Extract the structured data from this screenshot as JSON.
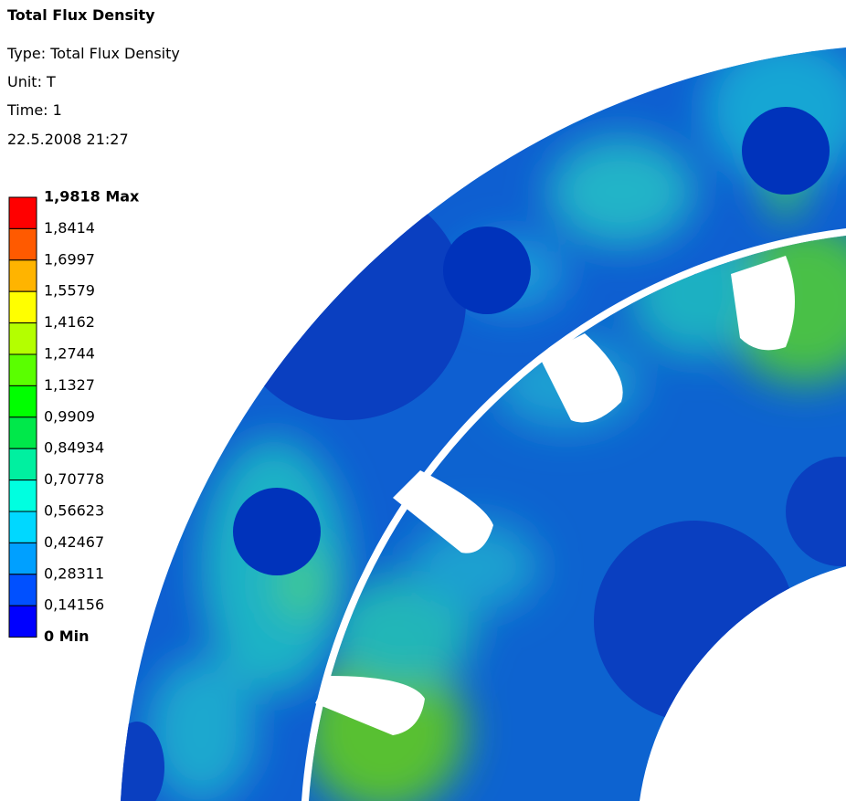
{
  "header": {
    "title": "Total Flux Density",
    "type": "Type: Total Flux Density",
    "unit": "Unit: T",
    "time": "Time: 1",
    "date": "22.5.2008 21:27"
  },
  "legend": {
    "labels": [
      "1,9818 Max",
      "1,8414",
      "1,6997",
      "1,5579",
      "1,4162",
      "1,2744",
      "1,1327",
      "0,9909",
      "0,84934",
      "0,70778",
      "0,56623",
      "0,42467",
      "0,28311",
      "0,14156",
      "0 Min"
    ]
  }
}
